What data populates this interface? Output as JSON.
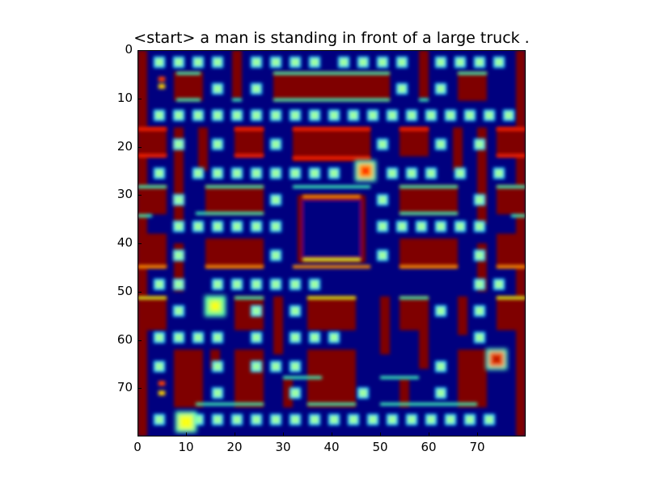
{
  "figure": {
    "title": "<start> a man is standing in front of a large truck ."
  },
  "axes": {
    "x_ticks": [
      "0",
      "10",
      "20",
      "30",
      "40",
      "50",
      "60",
      "70"
    ],
    "y_ticks": [
      "0",
      "10",
      "20",
      "30",
      "40",
      "50",
      "60",
      "70"
    ],
    "xlim": [
      0,
      80
    ],
    "ylim": [
      0,
      80
    ]
  },
  "palette": {
    "background": "#00007f",
    "wall": "#7f0000",
    "wall_edge_red": "#ff2000",
    "wall_edge_cyan": "#40ffc0",
    "wall_edge_yellow": "#e0ff20",
    "wall_edge_orange": "#ff9000",
    "pellet": "#a0ffa0",
    "pellet_glow": "#00c8ff"
  },
  "sprites": [
    {
      "name": "red-ghost-sprite",
      "x": 47,
      "y": 25
    },
    {
      "name": "cyan-ghost-sprite",
      "x": 16,
      "y": 53
    },
    {
      "name": "orange-ghost-sprite",
      "x": 74,
      "y": 64
    },
    {
      "name": "yellow-player-sprite",
      "x": 10,
      "y": 77
    }
  ]
}
